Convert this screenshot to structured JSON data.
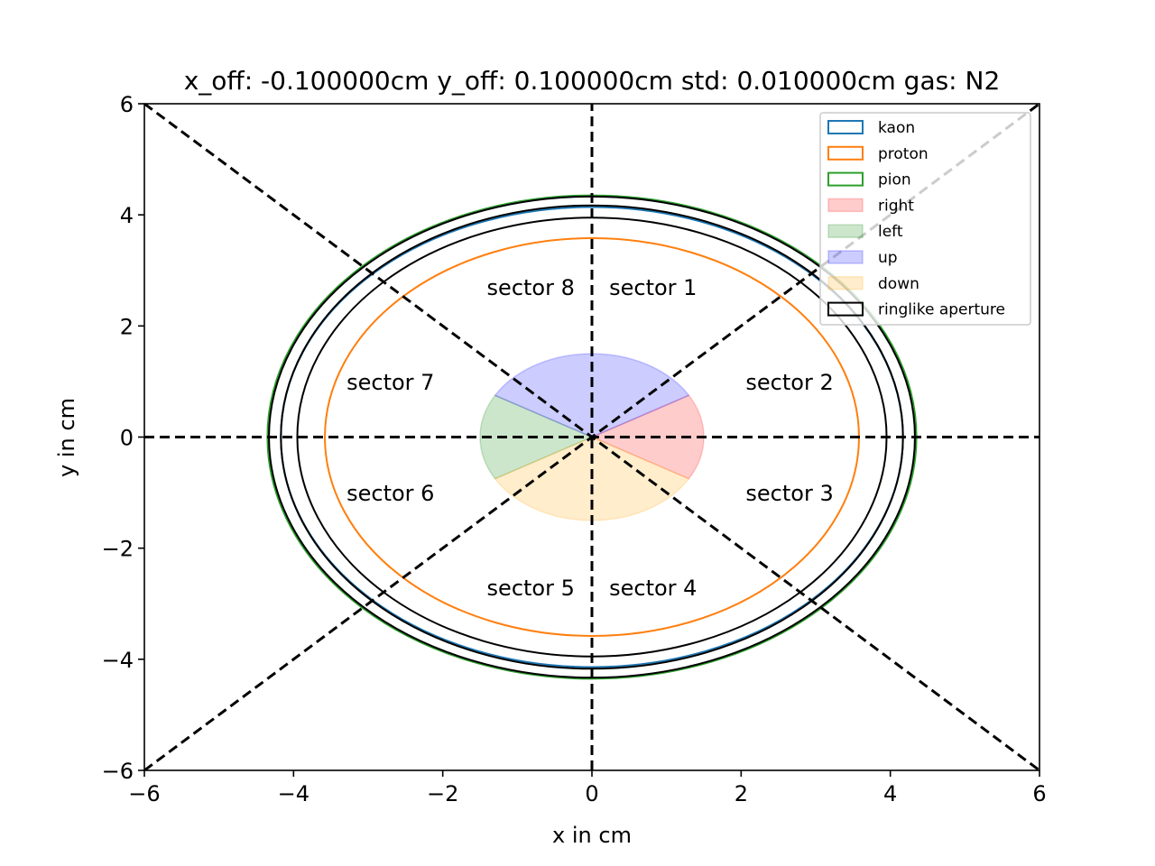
{
  "chart_data": {
    "type": "scatter",
    "title": "x_off: -0.100000cm y_off: 0.100000cm std: 0.010000cm gas: N2",
    "xlabel": "x in cm",
    "ylabel": "y in cm",
    "xlim": [
      -6,
      6
    ],
    "ylim": [
      -6,
      6
    ],
    "xticks": [
      -6,
      -4,
      -2,
      0,
      2,
      4,
      6
    ],
    "yticks": [
      -6,
      -4,
      -2,
      0,
      2,
      4,
      6
    ],
    "tick_labels_x": [
      "−6",
      "−4",
      "−2",
      "0",
      "2",
      "4",
      "6"
    ],
    "tick_labels_y": [
      "−6",
      "−4",
      "−2",
      "0",
      "2",
      "4",
      "6"
    ],
    "grid": false,
    "legend_position": "top-right",
    "rings": [
      {
        "name": "kaon",
        "color": "#1f77b4",
        "cx": 0.0,
        "cy": 0.0,
        "rx": 4.17,
        "ry": 4.14
      },
      {
        "name": "proton",
        "color": "#ff7f0e",
        "cx": 0.0,
        "cy": 0.0,
        "rx": 3.58,
        "ry": 3.58
      },
      {
        "name": "pion",
        "color": "#2ca02c",
        "cx": 0.0,
        "cy": 0.0,
        "rx": 4.35,
        "ry": 4.35
      }
    ],
    "aperture": {
      "name": "ringlike aperture",
      "color": "#000000",
      "radii": [
        4.33,
        4.17,
        3.95
      ]
    },
    "regions": [
      {
        "name": "right",
        "color": "#ff0000",
        "alpha": 0.2,
        "start_deg": -30,
        "end_deg": 30,
        "radius": 1.5
      },
      {
        "name": "left",
        "color": "#008000",
        "alpha": 0.2,
        "start_deg": 150,
        "end_deg": 210,
        "radius": 1.5
      },
      {
        "name": "up",
        "color": "#0000ff",
        "alpha": 0.2,
        "start_deg": 30,
        "end_deg": 150,
        "radius": 1.5
      },
      {
        "name": "down",
        "color": "#ffa500",
        "alpha": 0.2,
        "start_deg": 210,
        "end_deg": 330,
        "radius": 1.5
      }
    ],
    "divider_lines": [
      {
        "x": [
          -6,
          6
        ],
        "y": [
          0,
          0
        ]
      },
      {
        "x": [
          0,
          0
        ],
        "y": [
          -6,
          6
        ]
      },
      {
        "x": [
          -6,
          6
        ],
        "y": [
          -6,
          6
        ]
      },
      {
        "x": [
          -6,
          6
        ],
        "y": [
          6,
          -6
        ]
      }
    ],
    "annotations": [
      {
        "text": "sector 1",
        "x": 0.82,
        "y": 2.7
      },
      {
        "text": "sector 2",
        "x": 2.65,
        "y": 1.0
      },
      {
        "text": "sector 3",
        "x": 2.65,
        "y": -1.0
      },
      {
        "text": "sector 4",
        "x": 0.82,
        "y": -2.7
      },
      {
        "text": "sector 5",
        "x": -0.82,
        "y": -2.7
      },
      {
        "text": "sector 6",
        "x": -2.7,
        "y": -1.0
      },
      {
        "text": "sector 7",
        "x": -2.7,
        "y": 1.0
      },
      {
        "text": "sector 8",
        "x": -0.82,
        "y": 2.7
      }
    ],
    "legend": [
      {
        "label": "kaon",
        "color": "#1f77b4",
        "kind": "outline"
      },
      {
        "label": "proton",
        "color": "#ff7f0e",
        "kind": "outline"
      },
      {
        "label": "pion",
        "color": "#2ca02c",
        "kind": "outline"
      },
      {
        "label": "right",
        "color": "#ff0000",
        "kind": "fill"
      },
      {
        "label": "left",
        "color": "#008000",
        "kind": "fill"
      },
      {
        "label": "up",
        "color": "#0000ff",
        "kind": "fill"
      },
      {
        "label": "down",
        "color": "#ffa500",
        "kind": "fill"
      },
      {
        "label": "ringlike aperture",
        "color": "#000000",
        "kind": "outline"
      }
    ]
  }
}
